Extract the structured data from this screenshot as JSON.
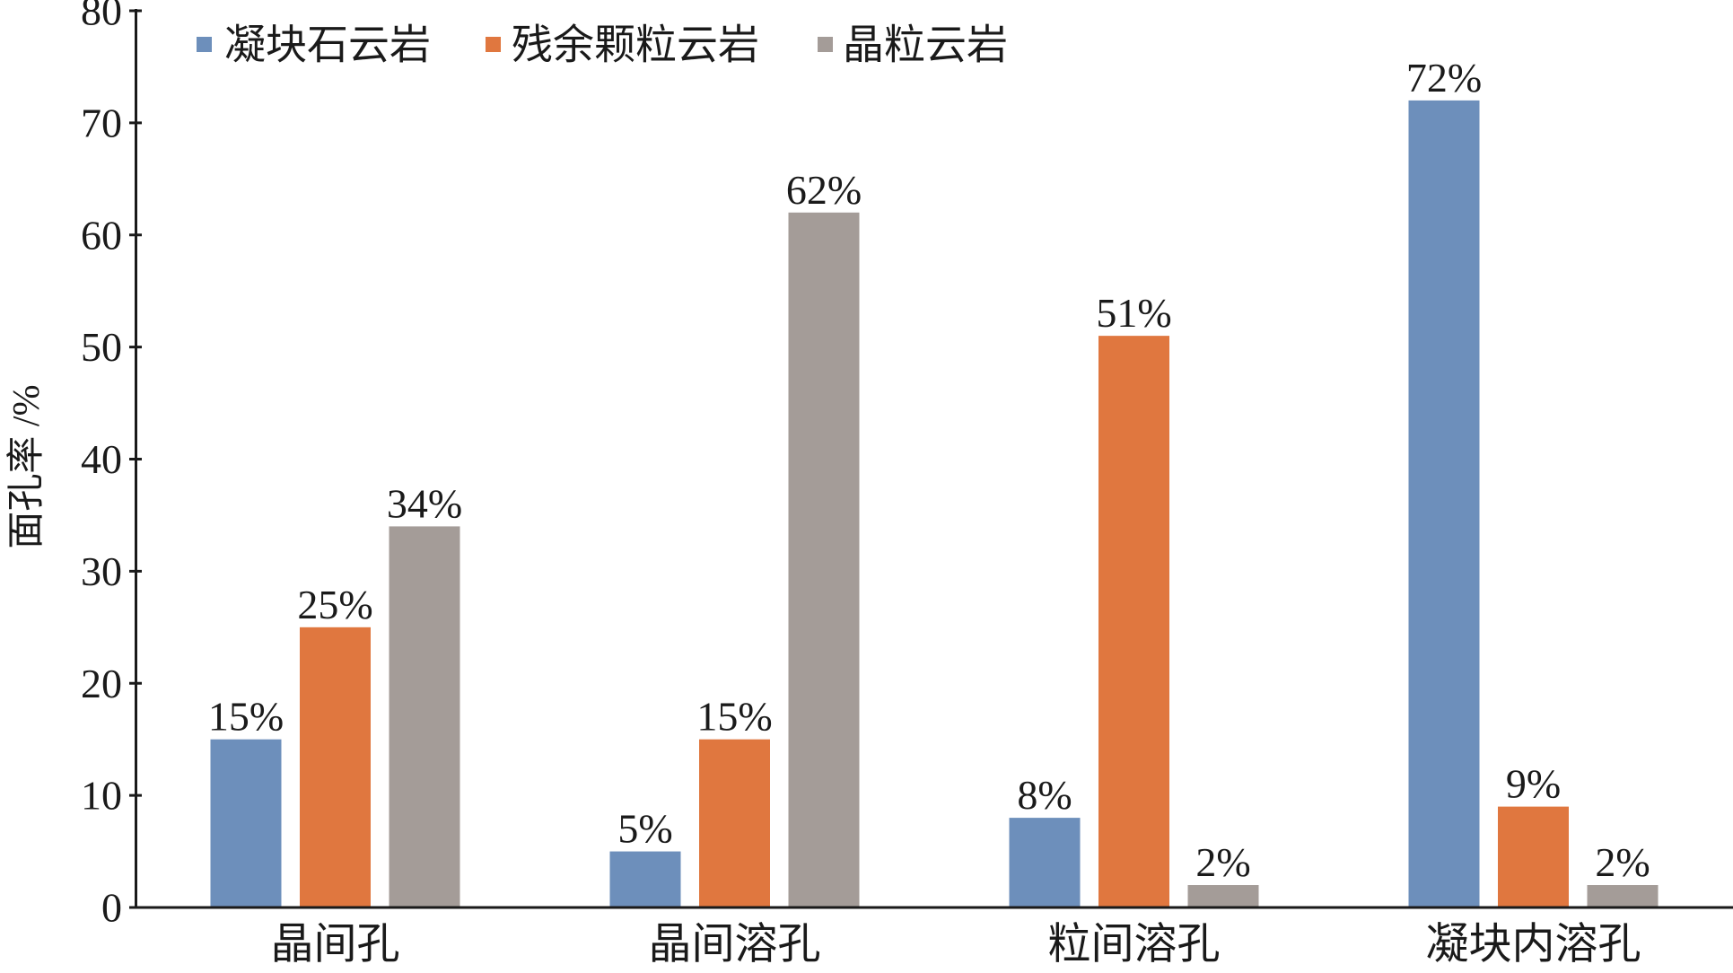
{
  "chart_data": {
    "type": "bar",
    "categories": [
      "晶间孔",
      "晶间溶孔",
      "粒间溶孔",
      "凝块内溶孔"
    ],
    "series": [
      {
        "name": "凝块石云岩",
        "values": [
          15,
          5,
          8,
          72
        ],
        "labels": [
          "15%",
          "5%",
          "8%",
          "72%"
        ],
        "color": "#6d8fbb"
      },
      {
        "name": "残余颗粒云岩",
        "values": [
          25,
          15,
          51,
          9
        ],
        "labels": [
          "25%",
          "15%",
          "51%",
          "9%"
        ],
        "color": "#e0773f"
      },
      {
        "name": "晶粒云岩",
        "values": [
          34,
          62,
          2,
          2
        ],
        "labels": [
          "34%",
          "62%",
          "2%",
          "2%"
        ],
        "color": "#a49c98"
      }
    ],
    "ylabel": "面孔率 /%",
    "ylim": [
      0,
      80
    ],
    "yticks": [
      0,
      10,
      20,
      30,
      40,
      50,
      60,
      70,
      80
    ],
    "grid": false,
    "legend": "top-left"
  }
}
